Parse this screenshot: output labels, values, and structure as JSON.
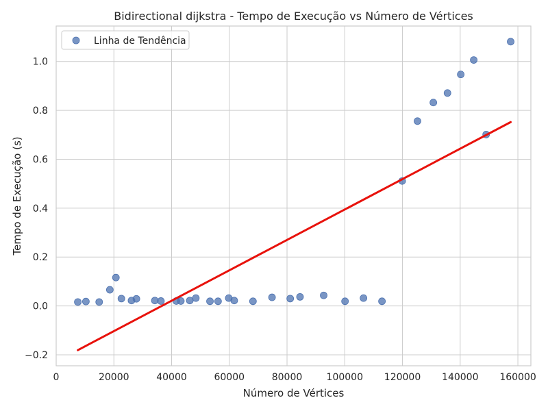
{
  "chart_data": {
    "type": "scatter",
    "title": "Bidirectional dijkstra - Tempo de Execução vs Número de Vértices",
    "xlabel": "Número de Vértices",
    "ylabel": "Tempo de Execução (s)",
    "xlim": [
      0,
      164500
    ],
    "ylim": [
      -0.245,
      1.145
    ],
    "xticks": [
      0,
      20000,
      40000,
      60000,
      80000,
      100000,
      120000,
      140000,
      160000
    ],
    "xtick_labels": [
      "0",
      "20000",
      "40000",
      "60000",
      "80000",
      "100000",
      "120000",
      "140000",
      "160000"
    ],
    "yticks": [
      -0.2,
      0.0,
      0.2,
      0.4,
      0.6,
      0.8,
      1.0
    ],
    "ytick_labels": [
      "−0.2",
      "0.0",
      "0.2",
      "0.4",
      "0.6",
      "0.8",
      "1.0"
    ],
    "grid": true,
    "legend": {
      "position": "top-left",
      "entries": [
        "Linha de Tendência"
      ]
    },
    "colors": {
      "points": "#4c72b0",
      "trend": "#e8120c",
      "grid": "#cccccc",
      "frame": "#cccccc"
    },
    "series": [
      {
        "name": "Linha de Tendência",
        "kind": "scatter",
        "x": [
          7500,
          10300,
          14900,
          18600,
          20700,
          22600,
          26100,
          27800,
          34200,
          36300,
          41600,
          43200,
          46300,
          48400,
          53300,
          56100,
          59800,
          61700,
          68200,
          74800,
          81100,
          84500,
          92700,
          100100,
          106500,
          112900,
          119900,
          125200,
          130700,
          135600,
          140200,
          144700,
          149000,
          157500
        ],
        "y": [
          0.016,
          0.018,
          0.016,
          0.066,
          0.116,
          0.03,
          0.022,
          0.029,
          0.022,
          0.02,
          0.02,
          0.02,
          0.022,
          0.032,
          0.019,
          0.019,
          0.032,
          0.022,
          0.019,
          0.035,
          0.03,
          0.037,
          0.043,
          0.019,
          0.032,
          0.019,
          0.511,
          0.756,
          0.832,
          0.871,
          0.947,
          1.006,
          0.701,
          1.081
        ]
      },
      {
        "kind": "line",
        "x": [
          7500,
          157500
        ],
        "y": [
          -0.181,
          0.752
        ]
      }
    ]
  }
}
